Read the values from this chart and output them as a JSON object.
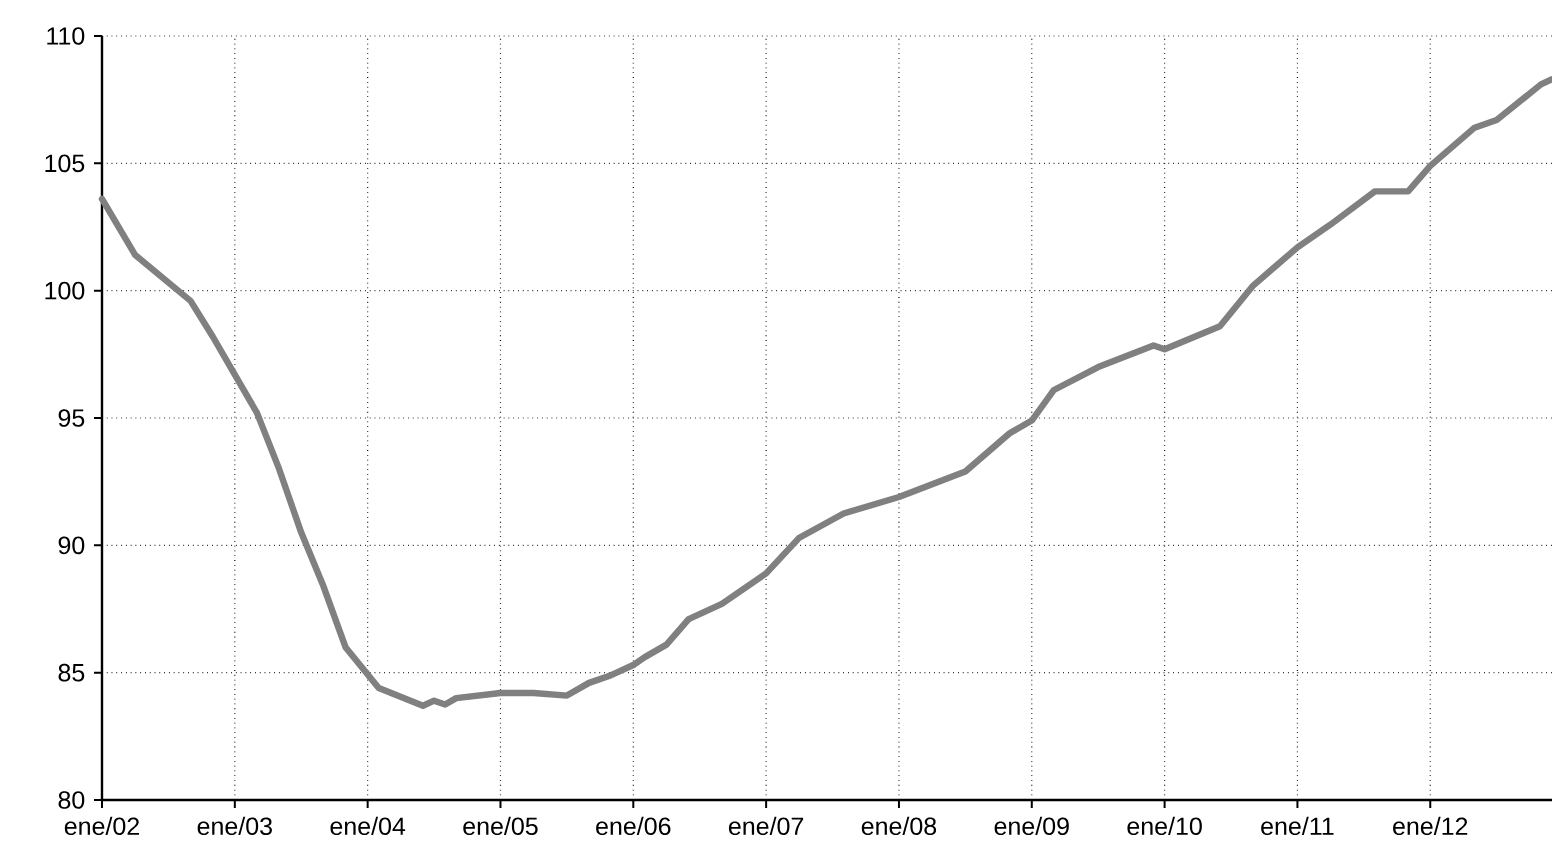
{
  "chart_data": {
    "type": "line",
    "x": [
      "2002-01",
      "2002-04",
      "2002-09",
      "2002-11",
      "2003-03",
      "2003-05",
      "2003-07",
      "2003-09",
      "2003-11",
      "2004-02",
      "2004-06",
      "2004-07",
      "2004-08",
      "2004-09",
      "2005-01",
      "2005-04",
      "2005-07",
      "2005-09",
      "2005-11",
      "2006-01",
      "2006-02",
      "2006-04",
      "2006-06",
      "2006-09",
      "2007-01",
      "2007-04",
      "2007-08",
      "2008-01",
      "2008-07",
      "2008-11",
      "2009-01",
      "2009-03",
      "2009-07",
      "2009-12",
      "2010-01",
      "2010-06",
      "2010-09",
      "2011-01",
      "2011-04",
      "2011-08",
      "2011-11",
      "2012-01",
      "2012-05",
      "2012-07",
      "2012-11",
      "2012-12"
    ],
    "series": [
      {
        "color": "#808080",
        "line_style": "solid",
        "values": [
          103.6,
          101.4,
          99.6,
          98.2,
          95.2,
          93.0,
          90.5,
          88.4,
          86.0,
          84.4,
          83.7,
          83.9,
          83.75,
          84.0,
          84.2,
          84.2,
          84.1,
          84.6,
          84.9,
          85.3,
          85.6,
          86.1,
          87.1,
          87.7,
          88.9,
          90.3,
          91.25,
          91.9,
          92.9,
          94.4,
          94.9,
          96.1,
          97.0,
          97.85,
          97.7,
          98.6,
          100.2,
          101.7,
          102.6,
          103.9,
          103.9,
          104.9,
          106.4,
          106.7,
          108.1,
          108.3
        ]
      }
    ],
    "xlim": [
      "2002-01",
      "2012-12"
    ],
    "xticks": [
      {
        "value": "2002-01",
        "label": "ene/02"
      },
      {
        "value": "2003-01",
        "label": "ene/03"
      },
      {
        "value": "2004-01",
        "label": "ene/04"
      },
      {
        "value": "2005-01",
        "label": "ene/05"
      },
      {
        "value": "2006-01",
        "label": "ene/06"
      },
      {
        "value": "2007-01",
        "label": "ene/07"
      },
      {
        "value": "2008-01",
        "label": "ene/08"
      },
      {
        "value": "2009-01",
        "label": "ene/09"
      },
      {
        "value": "2010-01",
        "label": "ene/10"
      },
      {
        "value": "2011-01",
        "label": "ene/11"
      },
      {
        "value": "2012-01",
        "label": "ene/12"
      }
    ],
    "ylim": [
      80,
      110
    ],
    "yticks": [
      80,
      85,
      90,
      95,
      100,
      105,
      110
    ],
    "grid": true
  }
}
